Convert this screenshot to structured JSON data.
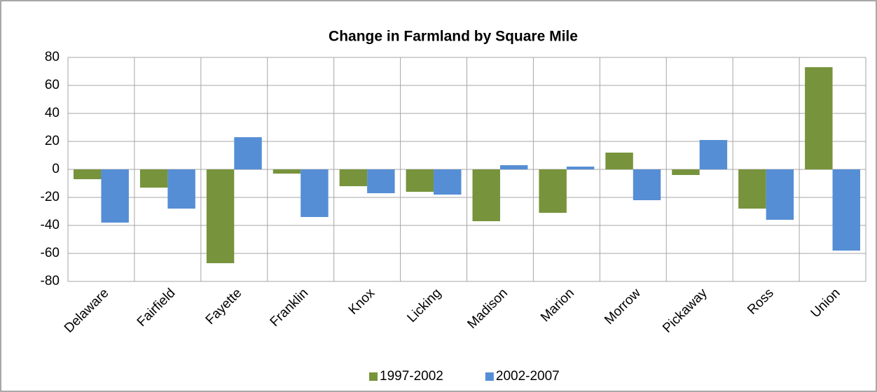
{
  "chart_data": {
    "type": "bar",
    "title": "Change in Farmland by Square Mile",
    "categories": [
      "Delaware",
      "Fairfield",
      "Fayette",
      "Franklin",
      "Knox",
      "Licking",
      "Madison",
      "Marion",
      "Morrow",
      "Pickaway",
      "Ross",
      "Union"
    ],
    "series": [
      {
        "name": "1997-2002",
        "color": "#77933c",
        "values": [
          -7,
          -13,
          -67,
          -3,
          -12,
          -16,
          -37,
          -31,
          12,
          -4,
          -28,
          73
        ]
      },
      {
        "name": "2002-2007",
        "color": "#558ed5",
        "values": [
          -38,
          -28,
          23,
          -34,
          -17,
          -18,
          3,
          2,
          -22,
          21,
          -36,
          -58
        ]
      }
    ],
    "ylim": [
      -80,
      80
    ],
    "yticks": [
      -80,
      -60,
      -40,
      -20,
      0,
      20,
      40,
      60,
      80
    ],
    "grid": true,
    "legend": "bottom"
  }
}
